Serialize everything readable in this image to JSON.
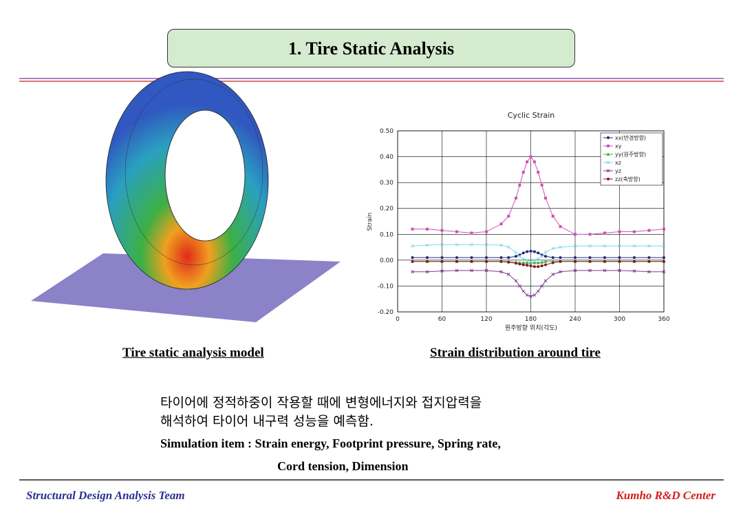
{
  "header": {
    "title": "1. Tire Static Analysis"
  },
  "chart_data": {
    "type": "line",
    "title": "Cyclic Strain",
    "x_label": "원주방향 위치(각도)",
    "y_label": "Strain",
    "x": [
      20,
      40,
      60,
      80,
      100,
      120,
      140,
      150,
      160,
      165,
      170,
      175,
      180,
      185,
      190,
      195,
      200,
      210,
      220,
      240,
      260,
      280,
      300,
      320,
      340,
      360
    ],
    "series": [
      {
        "name": "xx(반경방향)",
        "color": "#1f2a7a",
        "marker": "circle",
        "values": [
          0.01,
          0.01,
          0.01,
          0.01,
          0.01,
          0.01,
          0.01,
          0.01,
          0.015,
          0.02,
          0.028,
          0.033,
          0.035,
          0.033,
          0.028,
          0.02,
          0.015,
          0.01,
          0.01,
          0.01,
          0.01,
          0.01,
          0.01,
          0.01,
          0.01,
          0.01
        ]
      },
      {
        "name": "xy",
        "color": "#d04fb8",
        "marker": "square",
        "values": [
          0.12,
          0.12,
          0.115,
          0.11,
          0.105,
          0.11,
          0.14,
          0.17,
          0.24,
          0.29,
          0.34,
          0.38,
          0.4,
          0.38,
          0.34,
          0.29,
          0.24,
          0.17,
          0.13,
          0.1,
          0.1,
          0.105,
          0.11,
          0.11,
          0.115,
          0.12
        ]
      },
      {
        "name": "yy(원주방향)",
        "color": "#3fae3f",
        "marker": "triangle",
        "values": [
          -0.005,
          -0.005,
          -0.005,
          -0.005,
          -0.005,
          -0.005,
          -0.005,
          -0.005,
          -0.008,
          -0.01,
          -0.01,
          -0.01,
          -0.01,
          -0.01,
          -0.01,
          -0.008,
          -0.005,
          -0.005,
          -0.005,
          -0.005,
          -0.005,
          -0.005,
          -0.005,
          -0.005,
          -0.005,
          -0.005
        ]
      },
      {
        "name": "xz",
        "color": "#7fd8e8",
        "marker": "cross",
        "values": [
          0.055,
          0.058,
          0.06,
          0.06,
          0.06,
          0.06,
          0.058,
          0.05,
          0.03,
          0.015,
          0.005,
          0,
          -0.005,
          0,
          0.005,
          0.015,
          0.03,
          0.045,
          0.05,
          0.055,
          0.055,
          0.055,
          0.055,
          0.055,
          0.055,
          0.055
        ]
      },
      {
        "name": "yz",
        "color": "#7a3a8c",
        "marker": "cross",
        "values": [
          -0.045,
          -0.045,
          -0.042,
          -0.04,
          -0.04,
          -0.04,
          -0.045,
          -0.055,
          -0.08,
          -0.1,
          -0.12,
          -0.135,
          -0.14,
          -0.135,
          -0.12,
          -0.1,
          -0.08,
          -0.055,
          -0.045,
          -0.04,
          -0.04,
          -0.04,
          -0.04,
          -0.042,
          -0.045,
          -0.045
        ]
      },
      {
        "name": "zz(축방향)",
        "color": "#8b1a1a",
        "marker": "circle",
        "values": [
          -0.005,
          -0.005,
          -0.005,
          -0.005,
          -0.005,
          -0.005,
          -0.005,
          -0.008,
          -0.012,
          -0.015,
          -0.018,
          -0.02,
          -0.022,
          -0.025,
          -0.025,
          -0.022,
          -0.018,
          -0.01,
          -0.005,
          -0.005,
          -0.005,
          -0.005,
          -0.005,
          -0.005,
          -0.005,
          -0.005
        ]
      }
    ],
    "xlim": [
      0,
      360
    ],
    "xticks": [
      0,
      60,
      120,
      180,
      240,
      300,
      360
    ],
    "ylim": [
      -0.2,
      0.5
    ],
    "yticks": [
      {
        "value": -0.2,
        "label": "-0.20"
      },
      {
        "value": -0.1,
        "label": "-0.10"
      },
      {
        "value": 0,
        "label": "0.00"
      },
      {
        "value": 0.1,
        "label": "0.10"
      },
      {
        "value": 0.2,
        "label": "0.20"
      },
      {
        "value": 0.3,
        "label": "0.30"
      },
      {
        "value": 0.4,
        "label": "0.40"
      },
      {
        "value": 0.5,
        "label": "0.50"
      }
    ],
    "grid": true,
    "legend": "upper right"
  },
  "captions": {
    "model": "Tire static analysis model",
    "chart": "Strain distribution around tire"
  },
  "body": {
    "line1": "타이어에 정적하중이 작용할 때에 변형에너지와 접지압력을",
    "line2": "해석하여 타이어 내구력 성능을 예측함.",
    "line3": "Simulation item : Strain energy, Footprint pressure, Spring rate,",
    "line4": "Cord tension, Dimension"
  },
  "footer": {
    "left": "Structural Design Analysis Team",
    "right": "Kumho R&D Center"
  }
}
